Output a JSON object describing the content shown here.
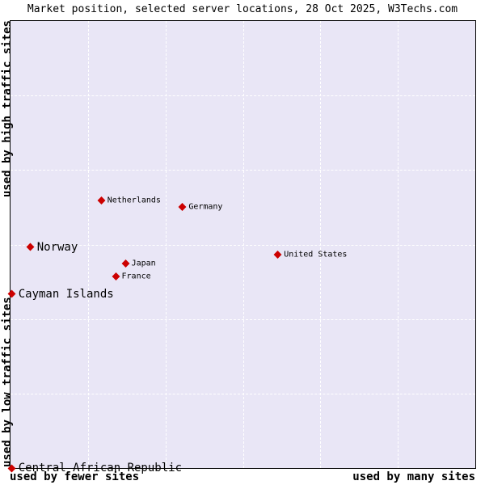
{
  "colors": {
    "page_background": "#ffffff",
    "plot_background": "#e9e6f6",
    "grid_line": "#ffffff",
    "marker": "#cc0000",
    "border": "#000000",
    "text": "#000000"
  },
  "chart_data": {
    "type": "scatter",
    "title": "Market position, selected server locations, 28 Oct 2025, W3Techs.com",
    "x_axis": {
      "left_label": "used by fewer sites",
      "right_label": "used by many sites",
      "range": [
        0,
        1
      ],
      "ticks": "none"
    },
    "y_axis": {
      "top_label": "used by high traffic sites",
      "bottom_label": "used by low traffic sites",
      "range": [
        0,
        1
      ],
      "ticks": "none"
    },
    "grid": {
      "divisions": 6,
      "style": "dashed",
      "visible": true
    },
    "legend": "none",
    "points": [
      {
        "label": "Netherlands",
        "x": 0.196,
        "y": 0.599,
        "emphasis": false
      },
      {
        "label": "Germany",
        "x": 0.371,
        "y": 0.584,
        "emphasis": false
      },
      {
        "label": "Norway",
        "x": 0.043,
        "y": 0.494,
        "emphasis": true
      },
      {
        "label": "Japan",
        "x": 0.248,
        "y": 0.458,
        "emphasis": false
      },
      {
        "label": "France",
        "x": 0.227,
        "y": 0.429,
        "emphasis": false
      },
      {
        "label": "United States",
        "x": 0.576,
        "y": 0.477,
        "emphasis": false
      },
      {
        "label": "Cayman Islands",
        "x": 0.003,
        "y": 0.389,
        "emphasis": true
      },
      {
        "label": "Central African Republic",
        "x": 0.003,
        "y": 0.0,
        "emphasis": true
      }
    ]
  }
}
